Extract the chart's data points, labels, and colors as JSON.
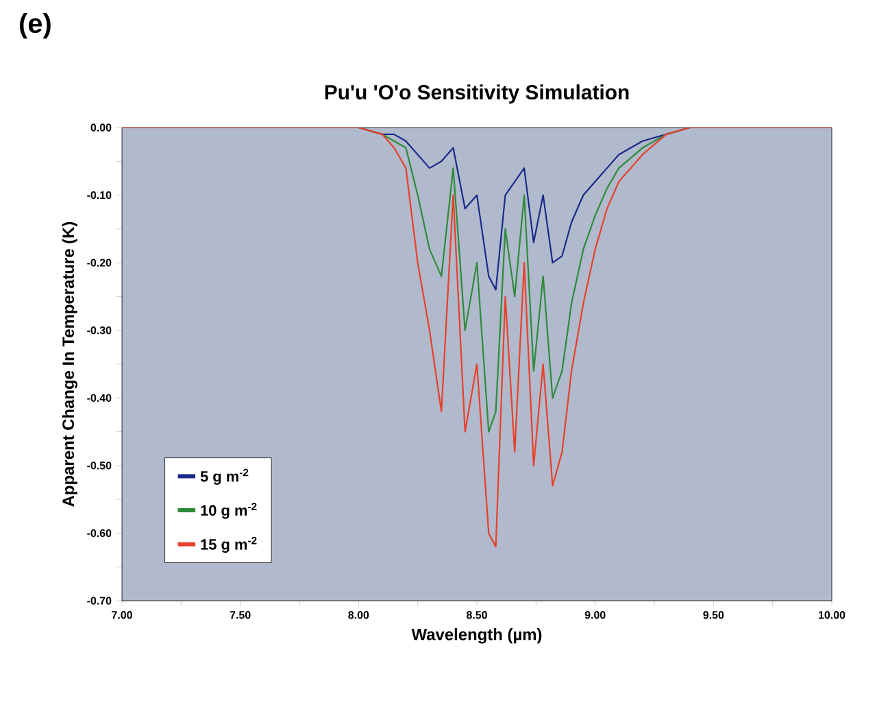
{
  "chart_data": {
    "type": "line",
    "title": "Pu'u 'O'o Sensitivity Simulation",
    "xlabel": "Wavelength (µm)",
    "ylabel": "Apparent Change In Temperature (K)",
    "annotations": [
      "(e)"
    ],
    "x": [
      7.0,
      8.0,
      8.1,
      8.15,
      8.2,
      8.25,
      8.3,
      8.35,
      8.4,
      8.45,
      8.5,
      8.55,
      8.58,
      8.62,
      8.66,
      8.7,
      8.74,
      8.78,
      8.82,
      8.86,
      8.9,
      8.95,
      9.0,
      9.05,
      9.1,
      9.2,
      9.3,
      9.4,
      10.0
    ],
    "series": [
      {
        "name": "5 g m$^{-2}$",
        "color": "#1a2a8a",
        "values": [
          0,
          0,
          -0.01,
          -0.01,
          -0.02,
          -0.04,
          -0.06,
          -0.05,
          -0.03,
          -0.12,
          -0.1,
          -0.22,
          -0.24,
          -0.1,
          -0.08,
          -0.06,
          -0.17,
          -0.1,
          -0.2,
          -0.19,
          -0.14,
          -0.1,
          -0.08,
          -0.06,
          -0.04,
          -0.02,
          -0.01,
          0,
          0
        ]
      },
      {
        "name": "10 g m$^{-2}$",
        "color": "#2e8a3a",
        "values": [
          0,
          0,
          -0.01,
          -0.02,
          -0.03,
          -0.1,
          -0.18,
          -0.22,
          -0.06,
          -0.3,
          -0.2,
          -0.45,
          -0.42,
          -0.15,
          -0.25,
          -0.1,
          -0.36,
          -0.22,
          -0.4,
          -0.36,
          -0.26,
          -0.18,
          -0.13,
          -0.09,
          -0.06,
          -0.03,
          -0.01,
          0,
          0
        ]
      },
      {
        "name": "15 g m$^{-2}$",
        "color": "#e8402a",
        "values": [
          0,
          0,
          -0.01,
          -0.03,
          -0.06,
          -0.2,
          -0.3,
          -0.42,
          -0.1,
          -0.45,
          -0.35,
          -0.6,
          -0.62,
          -0.25,
          -0.48,
          -0.2,
          -0.5,
          -0.35,
          -0.53,
          -0.48,
          -0.36,
          -0.26,
          -0.18,
          -0.12,
          -0.08,
          -0.04,
          -0.01,
          0,
          0
        ]
      }
    ],
    "xlim": [
      7.0,
      10.0
    ],
    "xticks": [
      {
        "value": 7.0,
        "label": "7.00"
      },
      {
        "value": 7.25,
        "label": null
      },
      {
        "value": 7.5,
        "label": "7.50"
      },
      {
        "value": 7.75,
        "label": null
      },
      {
        "value": 8.0,
        "label": "8.00"
      },
      {
        "value": 8.25,
        "label": null
      },
      {
        "value": 8.5,
        "label": "8.50"
      },
      {
        "value": 8.75,
        "label": null
      },
      {
        "value": 9.0,
        "label": "9.00"
      },
      {
        "value": 9.25,
        "label": null
      },
      {
        "value": 9.5,
        "label": "9.50"
      },
      {
        "value": 9.75,
        "label": null
      },
      {
        "value": 10.0,
        "label": "10.00"
      }
    ],
    "ylim": [
      -0.7,
      0.0
    ],
    "yticks": [
      {
        "value": 0.0,
        "label": "0.00"
      },
      {
        "value": -0.05,
        "label": null
      },
      {
        "value": -0.1,
        "label": "-0.10"
      },
      {
        "value": -0.15,
        "label": null
      },
      {
        "value": -0.2,
        "label": "-0.20"
      },
      {
        "value": -0.25,
        "label": null
      },
      {
        "value": -0.3,
        "label": "-0.30"
      },
      {
        "value": -0.35,
        "label": null
      },
      {
        "value": -0.4,
        "label": "-0.40"
      },
      {
        "value": -0.45,
        "label": null
      },
      {
        "value": -0.5,
        "label": "-0.50"
      },
      {
        "value": -0.55,
        "label": null
      },
      {
        "value": -0.6,
        "label": "-0.60"
      },
      {
        "value": -0.65,
        "label": null
      },
      {
        "value": -0.7,
        "label": "-0.70"
      }
    ],
    "grid": false,
    "legend": "bottom left",
    "marker": "none",
    "line_style": "solid"
  }
}
